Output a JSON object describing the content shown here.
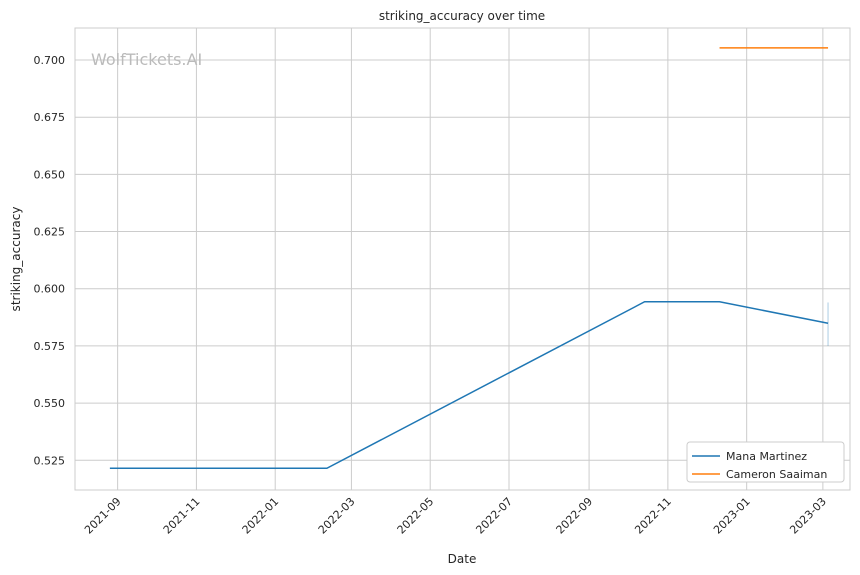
{
  "chart_data": {
    "type": "line",
    "title": "striking_accuracy over time",
    "xlabel": "Date",
    "ylabel": "striking_accuracy",
    "watermark": "WolfTickets.AI",
    "grid": true,
    "legend_position": "bottom-right",
    "xlim": [
      "2021-07-30",
      "2023-03-22"
    ],
    "ylim": [
      0.512,
      0.714
    ],
    "x_ticks": [
      "2021-09",
      "2021-11",
      "2022-01",
      "2022-03",
      "2022-05",
      "2022-07",
      "2022-09",
      "2022-11",
      "2023-01",
      "2023-03"
    ],
    "y_ticks": [
      "0.525",
      "0.550",
      "0.575",
      "0.600",
      "0.625",
      "0.650",
      "0.675",
      "0.700"
    ],
    "series": [
      {
        "name": "Mana Martinez",
        "color": "#1f77b4",
        "x": [
          "2021-08-26",
          "2022-02-10",
          "2022-10-14",
          "2022-12-11",
          "2023-03-05"
        ],
        "y": [
          0.5215,
          0.5215,
          0.5943,
          0.5943,
          0.5849
        ],
        "interval": {
          "x": "2023-03-05",
          "low": 0.575,
          "high": 0.594
        }
      },
      {
        "name": "Cameron Saaiman",
        "color": "#ff7f0e",
        "x": [
          "2022-12-11",
          "2023-03-05"
        ],
        "y": [
          0.7053,
          0.7053
        ]
      }
    ]
  }
}
